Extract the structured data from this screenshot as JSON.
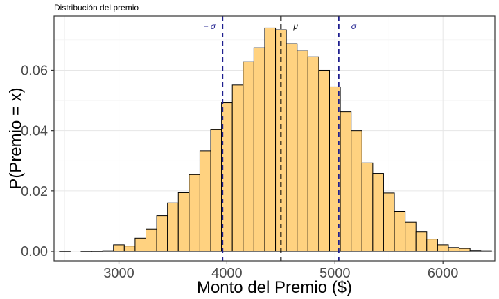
{
  "chart_data": {
    "type": "bar",
    "title": "Distribución del premio",
    "xlabel": "Monto del Premio ($)",
    "ylabel": "P(Premio = x)",
    "xlim": [
      2400,
      6480
    ],
    "ylim": [
      -0.0032,
      0.078
    ],
    "x_ticks": [
      3000,
      4000,
      5000,
      6000
    ],
    "x_tick_labels": [
      "3000",
      "4000",
      "5000",
      "6000"
    ],
    "y_ticks": [
      0.0,
      0.02,
      0.04,
      0.06
    ],
    "y_tick_labels": [
      "0.00",
      "0.02",
      "0.04",
      "0.06"
    ],
    "grid": true,
    "bar_fill": "#ffd280",
    "bar_stroke": "#000000",
    "bins": [
      {
        "x0": 2450,
        "x1": 2550,
        "y": 0.0001
      },
      {
        "x0": 2650,
        "x1": 2750,
        "y": 0.0001
      },
      {
        "x0": 2750,
        "x1": 2850,
        "y": 0.0001
      },
      {
        "x0": 2850,
        "x1": 2950,
        "y": 0.0002
      },
      {
        "x0": 2950,
        "x1": 3050,
        "y": 0.0021
      },
      {
        "x0": 3050,
        "x1": 3150,
        "y": 0.0017
      },
      {
        "x0": 3150,
        "x1": 3250,
        "y": 0.0043
      },
      {
        "x0": 3250,
        "x1": 3350,
        "y": 0.0073
      },
      {
        "x0": 3350,
        "x1": 3450,
        "y": 0.0118
      },
      {
        "x0": 3450,
        "x1": 3550,
        "y": 0.016
      },
      {
        "x0": 3550,
        "x1": 3650,
        "y": 0.0194
      },
      {
        "x0": 3650,
        "x1": 3750,
        "y": 0.0254
      },
      {
        "x0": 3750,
        "x1": 3850,
        "y": 0.0333
      },
      {
        "x0": 3850,
        "x1": 3950,
        "y": 0.0403
      },
      {
        "x0": 3950,
        "x1": 4050,
        "y": 0.0492
      },
      {
        "x0": 4050,
        "x1": 4150,
        "y": 0.0551
      },
      {
        "x0": 4150,
        "x1": 4250,
        "y": 0.0628
      },
      {
        "x0": 4250,
        "x1": 4350,
        "y": 0.0674
      },
      {
        "x0": 4350,
        "x1": 4450,
        "y": 0.074
      },
      {
        "x0": 4450,
        "x1": 4550,
        "y": 0.0734
      },
      {
        "x0": 4550,
        "x1": 4650,
        "y": 0.0688
      },
      {
        "x0": 4650,
        "x1": 4750,
        "y": 0.0665
      },
      {
        "x0": 4750,
        "x1": 4850,
        "y": 0.0644
      },
      {
        "x0": 4850,
        "x1": 4950,
        "y": 0.06
      },
      {
        "x0": 4950,
        "x1": 5050,
        "y": 0.0545
      },
      {
        "x0": 5050,
        "x1": 5150,
        "y": 0.0462
      },
      {
        "x0": 5150,
        "x1": 5250,
        "y": 0.04
      },
      {
        "x0": 5250,
        "x1": 5350,
        "y": 0.0293
      },
      {
        "x0": 5350,
        "x1": 5450,
        "y": 0.0258
      },
      {
        "x0": 5450,
        "x1": 5550,
        "y": 0.0193
      },
      {
        "x0": 5550,
        "x1": 5650,
        "y": 0.0132
      },
      {
        "x0": 5650,
        "x1": 5750,
        "y": 0.0096
      },
      {
        "x0": 5750,
        "x1": 5850,
        "y": 0.0065
      },
      {
        "x0": 5850,
        "x1": 5950,
        "y": 0.004
      },
      {
        "x0": 5950,
        "x1": 6050,
        "y": 0.0021
      },
      {
        "x0": 6050,
        "x1": 6150,
        "y": 0.0012
      },
      {
        "x0": 6150,
        "x1": 6250,
        "y": 0.0009
      },
      {
        "x0": 6250,
        "x1": 6350,
        "y": 0.0003
      },
      {
        "x0": 6350,
        "x1": 6450,
        "y": 0.0002
      }
    ],
    "reference_lines": [
      {
        "x": 3960,
        "label": "− σ",
        "color": "#1f1f8f",
        "label_side": "left"
      },
      {
        "x": 4500,
        "label": "μ",
        "color": "#000000",
        "label_side": "right"
      },
      {
        "x": 5035,
        "label": "σ",
        "color": "#1f1f8f",
        "label_side": "right"
      }
    ]
  }
}
